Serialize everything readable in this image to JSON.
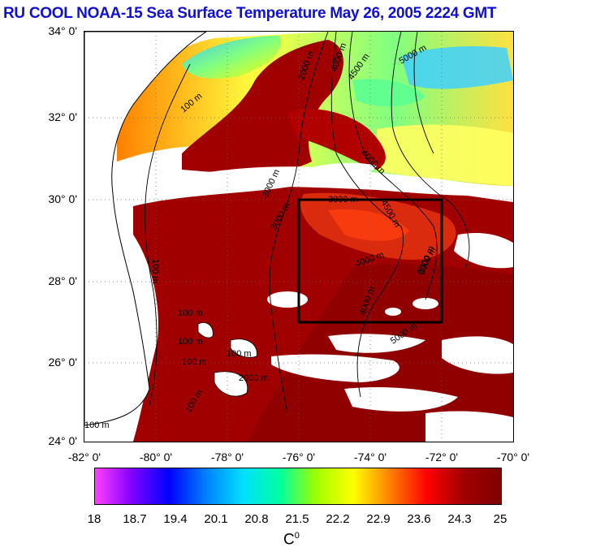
{
  "title": "RU COOL  NOAA-15 Sea Surface Temperature May 26, 2005 2224 GMT",
  "map": {
    "lat_labels": [
      "34° 0'",
      "32° 0'",
      "30° 0'",
      "28° 0'",
      "26° 0'",
      "24° 0'"
    ],
    "lon_labels": [
      "-82° 0'",
      "-80° 0'",
      "-78° 0'",
      "-76° 0'",
      "-74° 0'",
      "-72° 0'",
      "-70° 0'"
    ],
    "lat_range": [
      24,
      34
    ],
    "lon_range": [
      -82,
      -70
    ],
    "box": {
      "lat_range": [
        27,
        30
      ],
      "lon_range": [
        -76,
        -72
      ]
    },
    "contour_labels": [
      "100 m",
      "100 m",
      "100 m",
      "100 m",
      "100 m",
      "100 m",
      "100 m",
      "100 m",
      "2000 m",
      "4000 m",
      "4500 m",
      "5000 m",
      "3000 m",
      "4000 m",
      "3000 m",
      "4500 m",
      "4000 m",
      "3000 m",
      "5000 m",
      "5000 m",
      "3000 m",
      "4000 m",
      "2000 m"
    ],
    "colors": {
      "warm": "#a00000",
      "land": "#ffffff",
      "cloud": "#ffffff"
    }
  },
  "colorbar": {
    "ticks": [
      "18",
      "18.7",
      "19.4",
      "20.1",
      "20.8",
      "21.5",
      "22.2",
      "22.9",
      "23.6",
      "24.3",
      "25"
    ],
    "label": "C",
    "label_sup": "0",
    "range": [
      18,
      25
    ],
    "colors": [
      "#ff40ff",
      "#8000ff",
      "#0000ff",
      "#0080ff",
      "#00e0ff",
      "#00ffa0",
      "#a0ff00",
      "#ffff00",
      "#ff8000",
      "#ff0000",
      "#a00000",
      "#800000"
    ]
  }
}
